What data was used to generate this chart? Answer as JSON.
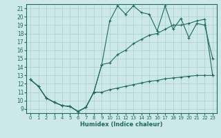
{
  "xlabel": "Humidex (Indice chaleur)",
  "ylabel": "",
  "xlim": [
    -0.5,
    23.5
  ],
  "ylim": [
    8.5,
    21.5
  ],
  "yticks": [
    9,
    10,
    11,
    12,
    13,
    14,
    15,
    16,
    17,
    18,
    19,
    20,
    21
  ],
  "xticks": [
    0,
    1,
    2,
    3,
    4,
    5,
    6,
    7,
    8,
    9,
    10,
    11,
    12,
    13,
    14,
    15,
    16,
    17,
    18,
    19,
    20,
    21,
    22,
    23
  ],
  "background_color": "#cde8e8",
  "line_color": "#1a6b5a",
  "grid_color": "#aacece",
  "line1_x": [
    0,
    1,
    2,
    3,
    4,
    5,
    6,
    7,
    8,
    9,
    10,
    11,
    12,
    13,
    14,
    15,
    16,
    17,
    18,
    19,
    20,
    21,
    22,
    23
  ],
  "line1_y": [
    12.5,
    11.7,
    10.3,
    9.8,
    9.4,
    9.3,
    8.7,
    9.2,
    11.0,
    14.3,
    19.5,
    21.3,
    20.3,
    21.3,
    20.5,
    20.3,
    18.3,
    21.3,
    18.5,
    19.8,
    17.5,
    19.2,
    19.0,
    15.0
  ],
  "line2_x": [
    0,
    1,
    2,
    3,
    4,
    5,
    6,
    7,
    8,
    9,
    10,
    11,
    12,
    13,
    14,
    15,
    16,
    17,
    18,
    19,
    20,
    21,
    22,
    23
  ],
  "line2_y": [
    12.5,
    11.7,
    10.3,
    9.8,
    9.4,
    9.3,
    8.7,
    9.2,
    11.0,
    14.3,
    14.5,
    15.5,
    16.0,
    16.8,
    17.3,
    17.8,
    18.0,
    18.5,
    19.0,
    19.0,
    19.2,
    19.5,
    19.7,
    13.0
  ],
  "line3_x": [
    0,
    1,
    2,
    3,
    4,
    5,
    6,
    7,
    8,
    9,
    10,
    11,
    12,
    13,
    14,
    15,
    16,
    17,
    18,
    19,
    20,
    21,
    22,
    23
  ],
  "line3_y": [
    12.5,
    11.7,
    10.3,
    9.8,
    9.4,
    9.3,
    8.7,
    9.2,
    11.0,
    11.0,
    11.3,
    11.5,
    11.7,
    11.9,
    12.1,
    12.3,
    12.4,
    12.6,
    12.7,
    12.8,
    12.9,
    13.0,
    13.0,
    13.0
  ]
}
